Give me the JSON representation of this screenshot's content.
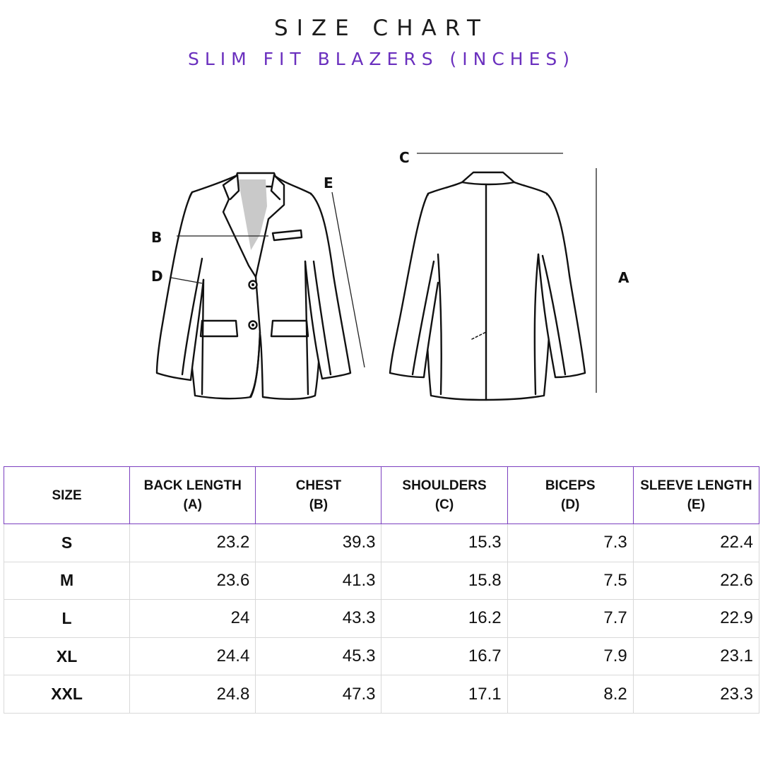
{
  "header": {
    "title": "SIZE CHART",
    "subtitle": "SLIM FIT BLAZERS (INCHES)"
  },
  "colors": {
    "accent": "#6a2fbe",
    "border_header": "#7b3fbf",
    "border_body": "#d9d9d9",
    "text": "#111111"
  },
  "illustration": {
    "labels": {
      "a": "A",
      "b": "B",
      "c": "C",
      "d": "D",
      "e": "E"
    }
  },
  "table": {
    "headers": [
      {
        "line1": "SIZE",
        "line2": ""
      },
      {
        "line1": "BACK LENGTH",
        "line2": "(A)"
      },
      {
        "line1": "CHEST",
        "line2": "(B)"
      },
      {
        "line1": "SHOULDERS",
        "line2": "(C)"
      },
      {
        "line1": "BICEPS",
        "line2": "(D)"
      },
      {
        "line1": "SLEEVE LENGTH",
        "line2": "(E)"
      }
    ],
    "rows": [
      {
        "size": "S",
        "values": [
          "23.2",
          "39.3",
          "15.3",
          "7.3",
          "22.4"
        ]
      },
      {
        "size": "M",
        "values": [
          "23.6",
          "41.3",
          "15.8",
          "7.5",
          "22.6"
        ]
      },
      {
        "size": "L",
        "values": [
          "24",
          "43.3",
          "16.2",
          "7.7",
          "22.9"
        ]
      },
      {
        "size": "XL",
        "values": [
          "24.4",
          "45.3",
          "16.7",
          "7.9",
          "23.1"
        ]
      },
      {
        "size": "XXL",
        "values": [
          "24.8",
          "47.3",
          "17.1",
          "8.2",
          "23.3"
        ]
      }
    ]
  }
}
